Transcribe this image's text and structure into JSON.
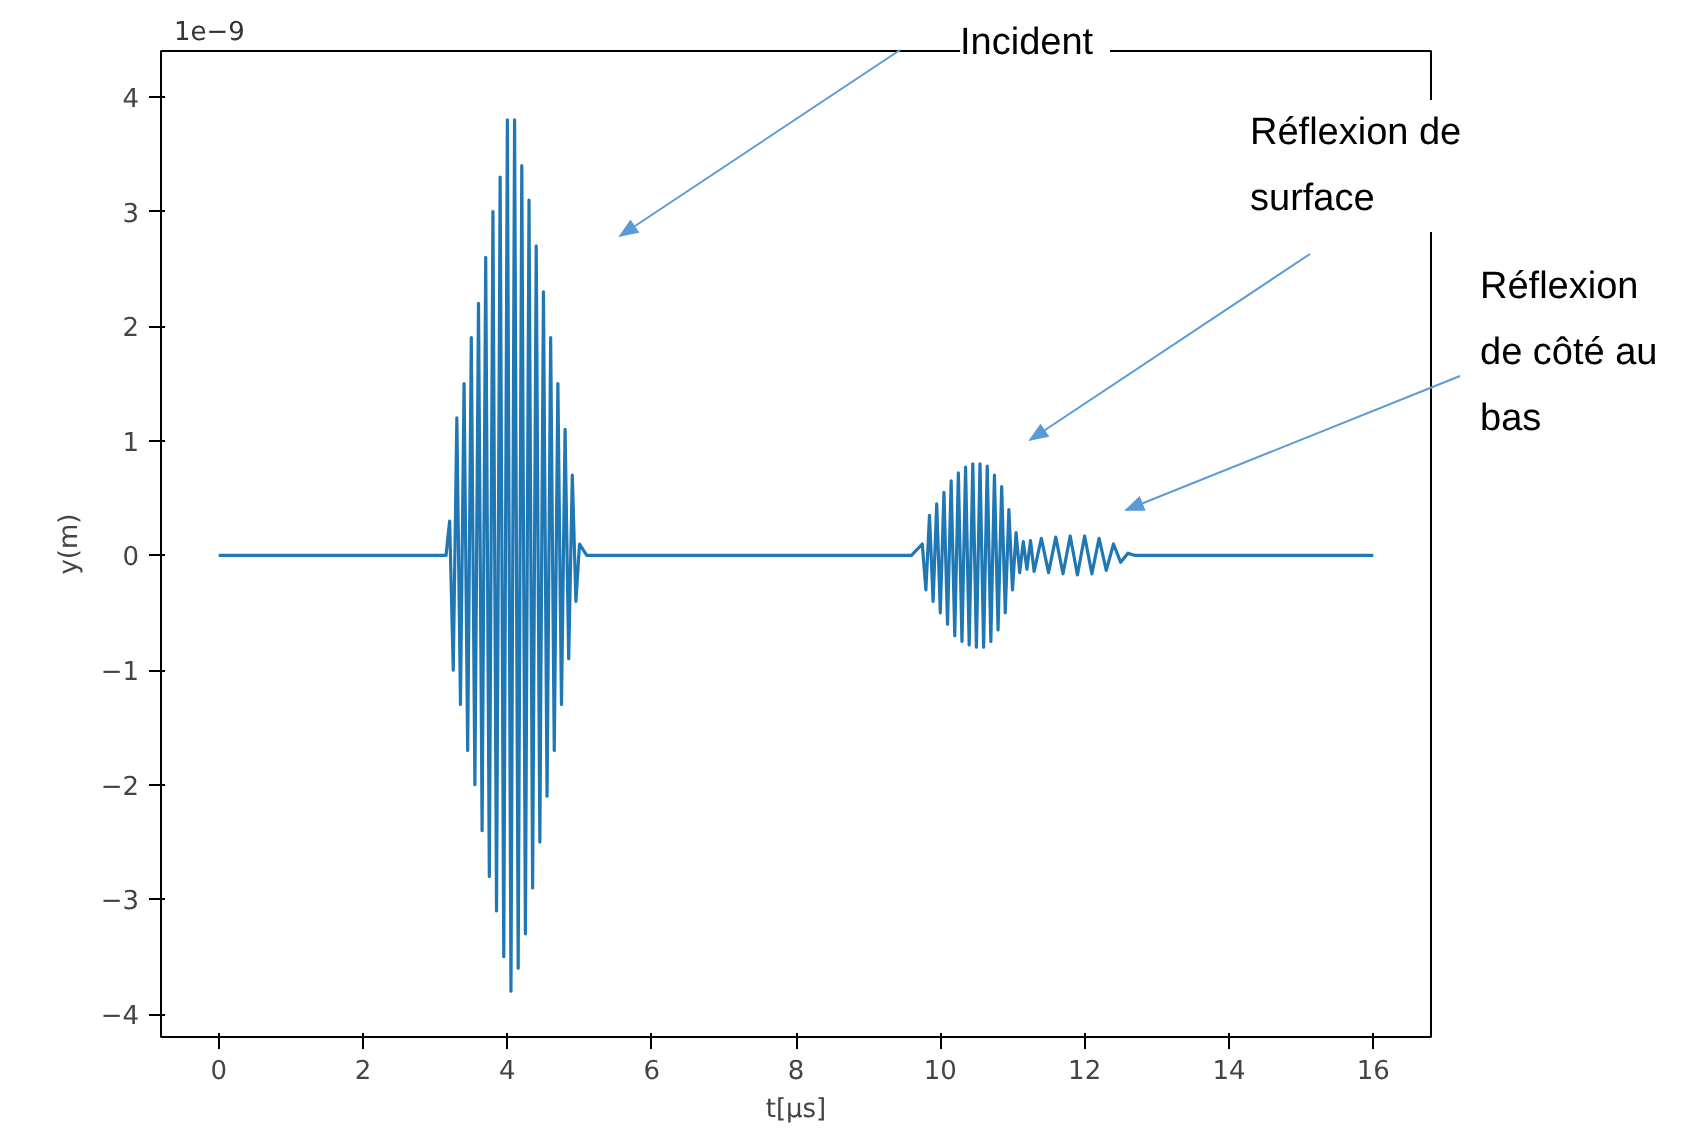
{
  "chart_data": {
    "type": "line",
    "xlabel": "t[μs]",
    "ylabel": "y(m)",
    "xlim": [
      -0.8,
      16.8
    ],
    "ylim": [
      -4.2,
      4.4
    ],
    "xticks": [
      0,
      2,
      4,
      6,
      8,
      10,
      12,
      14,
      16
    ],
    "yticks": [
      -4,
      -3,
      -2,
      -1,
      0,
      1,
      2,
      3,
      4
    ],
    "grid": false,
    "marker": "none",
    "line_style": "solid",
    "annotations": [
      "1e−9",
      "Incident",
      "Réflexion de surface",
      "Réflexion de côté au bas"
    ],
    "series": [
      {
        "color": "#1f77b4",
        "x": [
          0,
          3.15,
          3.2,
          3.25,
          3.3,
          3.35,
          3.4,
          3.45,
          3.5,
          3.55,
          3.6,
          3.65,
          3.7,
          3.75,
          3.8,
          3.85,
          3.9,
          3.95,
          4.0,
          4.05,
          4.1,
          4.15,
          4.2,
          4.25,
          4.3,
          4.35,
          4.4,
          4.45,
          4.5,
          4.55,
          4.6,
          4.65,
          4.7,
          4.75,
          4.8,
          4.85,
          4.9,
          4.95,
          5.0,
          5.1,
          9.6,
          9.75,
          9.8,
          9.85,
          9.9,
          9.95,
          10.0,
          10.05,
          10.1,
          10.15,
          10.2,
          10.25,
          10.3,
          10.35,
          10.4,
          10.45,
          10.5,
          10.55,
          10.6,
          10.65,
          10.7,
          10.75,
          10.8,
          10.85,
          10.9,
          10.95,
          11.0,
          11.05,
          11.1,
          11.15,
          11.2,
          11.25,
          11.3,
          11.4,
          11.5,
          11.6,
          11.7,
          11.8,
          11.9,
          12.0,
          12.1,
          12.2,
          12.3,
          12.4,
          12.5,
          12.6,
          12.7,
          16
        ],
        "values": [
          0,
          0,
          0.3,
          -1.0,
          1.2,
          -1.3,
          1.5,
          -1.7,
          1.9,
          -2.0,
          2.2,
          -2.4,
          2.6,
          -2.8,
          3.0,
          -3.1,
          3.3,
          -3.5,
          3.8,
          -3.8,
          3.8,
          -3.6,
          3.4,
          -3.3,
          3.1,
          -2.9,
          2.7,
          -2.5,
          2.3,
          -2.1,
          1.9,
          -1.7,
          1.5,
          -1.3,
          1.1,
          -0.9,
          0.7,
          -0.4,
          0.1,
          0,
          0,
          0.1,
          -0.3,
          0.35,
          -0.4,
          0.45,
          -0.5,
          0.55,
          -0.6,
          0.65,
          -0.7,
          0.72,
          -0.75,
          0.77,
          -0.78,
          0.8,
          -0.8,
          0.8,
          -0.8,
          0.78,
          -0.75,
          0.7,
          -0.65,
          0.6,
          -0.5,
          0.4,
          -0.3,
          0.2,
          -0.15,
          0.12,
          -0.12,
          0.13,
          -0.14,
          0.15,
          -0.15,
          0.16,
          -0.16,
          0.17,
          -0.17,
          0.17,
          -0.16,
          0.15,
          -0.13,
          0.1,
          -0.06,
          0.02,
          0,
          0
        ]
      }
    ]
  }
}
